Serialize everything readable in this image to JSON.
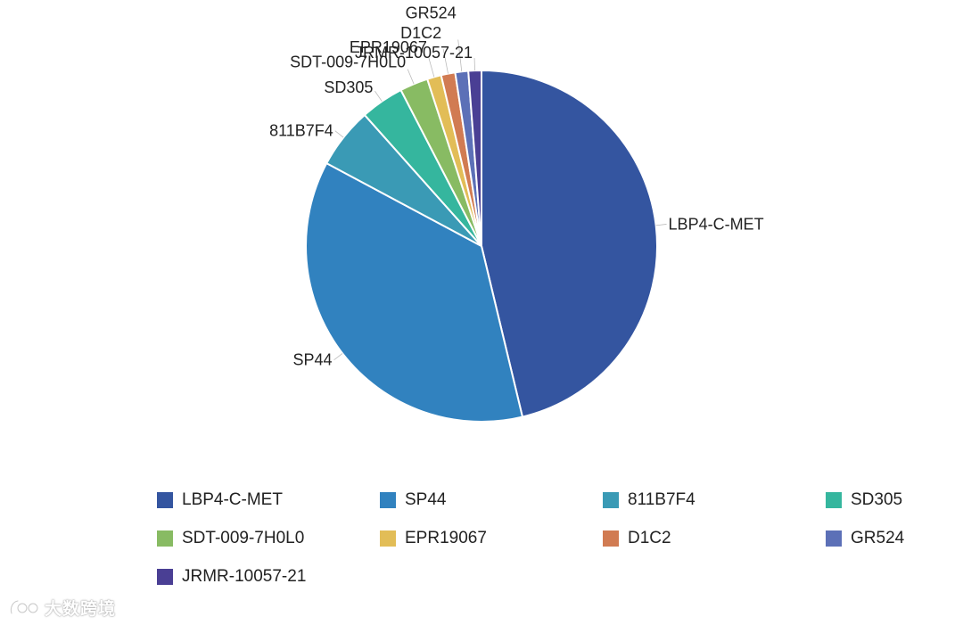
{
  "chart_data": {
    "type": "pie",
    "slices": [
      {
        "label": "LBP4-C-MET",
        "value": 46.3,
        "color": "#3455a0"
      },
      {
        "label": "SP44",
        "value": 36.6,
        "color": "#3182bf"
      },
      {
        "label": "811B7F4",
        "value": 5.6,
        "color": "#3a9ab5"
      },
      {
        "label": "SD305",
        "value": 4.0,
        "color": "#35b69e"
      },
      {
        "label": "SDT-009-7H0L0",
        "value": 2.6,
        "color": "#88bb63"
      },
      {
        "label": "EPR19067",
        "value": 1.3,
        "color": "#e2bd57"
      },
      {
        "label": "D1C2",
        "value": 1.3,
        "color": "#d17b52"
      },
      {
        "label": "GR524",
        "value": 1.2,
        "color": "#5c70b7"
      },
      {
        "label": "JRMR-10057-21",
        "value": 1.2,
        "color": "#4a3f94"
      }
    ],
    "legend_position": "bottom",
    "start_angle_deg": 0,
    "direction": "clockwise"
  },
  "watermark": {
    "text": "大数跨境",
    "icon": "brand-logo-icon"
  }
}
